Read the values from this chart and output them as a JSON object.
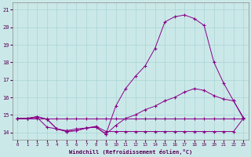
{
  "xlabel": "Windchill (Refroidissement éolien,°C)",
  "background_color": "#cbe8e8",
  "grid_color": "#a8d4d4",
  "line_color": "#880088",
  "xlim": [
    -0.5,
    23.5
  ],
  "ylim": [
    13.6,
    21.4
  ],
  "xticks": [
    0,
    1,
    2,
    3,
    4,
    5,
    6,
    7,
    8,
    9,
    10,
    11,
    12,
    13,
    14,
    15,
    16,
    17,
    18,
    19,
    20,
    21,
    22,
    23
  ],
  "yticks": [
    14,
    15,
    16,
    17,
    18,
    19,
    20,
    21
  ],
  "series": [
    [
      14.8,
      14.8,
      14.8,
      14.8,
      14.8,
      14.8,
      14.8,
      14.8,
      14.8,
      14.8,
      14.8,
      14.8,
      14.8,
      14.8,
      14.8,
      14.8,
      14.8,
      14.8,
      14.8,
      14.8,
      14.8,
      14.8,
      14.8,
      14.8
    ],
    [
      14.8,
      14.8,
      14.85,
      14.3,
      14.2,
      14.1,
      14.2,
      14.25,
      14.35,
      14.05,
      14.05,
      14.05,
      14.05,
      14.05,
      14.05,
      14.05,
      14.05,
      14.05,
      14.05,
      14.05,
      14.05,
      14.05,
      14.05,
      14.8
    ],
    [
      14.8,
      14.8,
      14.9,
      14.75,
      14.2,
      14.05,
      14.1,
      14.25,
      14.3,
      13.9,
      14.4,
      14.8,
      15.0,
      15.3,
      15.5,
      15.8,
      16.0,
      16.3,
      16.5,
      16.4,
      16.1,
      15.9,
      15.8,
      14.8
    ],
    [
      14.8,
      14.8,
      14.9,
      14.75,
      14.2,
      14.05,
      14.1,
      14.25,
      14.3,
      13.9,
      15.5,
      16.5,
      17.2,
      17.8,
      18.8,
      20.3,
      20.6,
      20.7,
      20.5,
      20.1,
      18.0,
      16.8,
      15.8,
      14.85
    ]
  ]
}
